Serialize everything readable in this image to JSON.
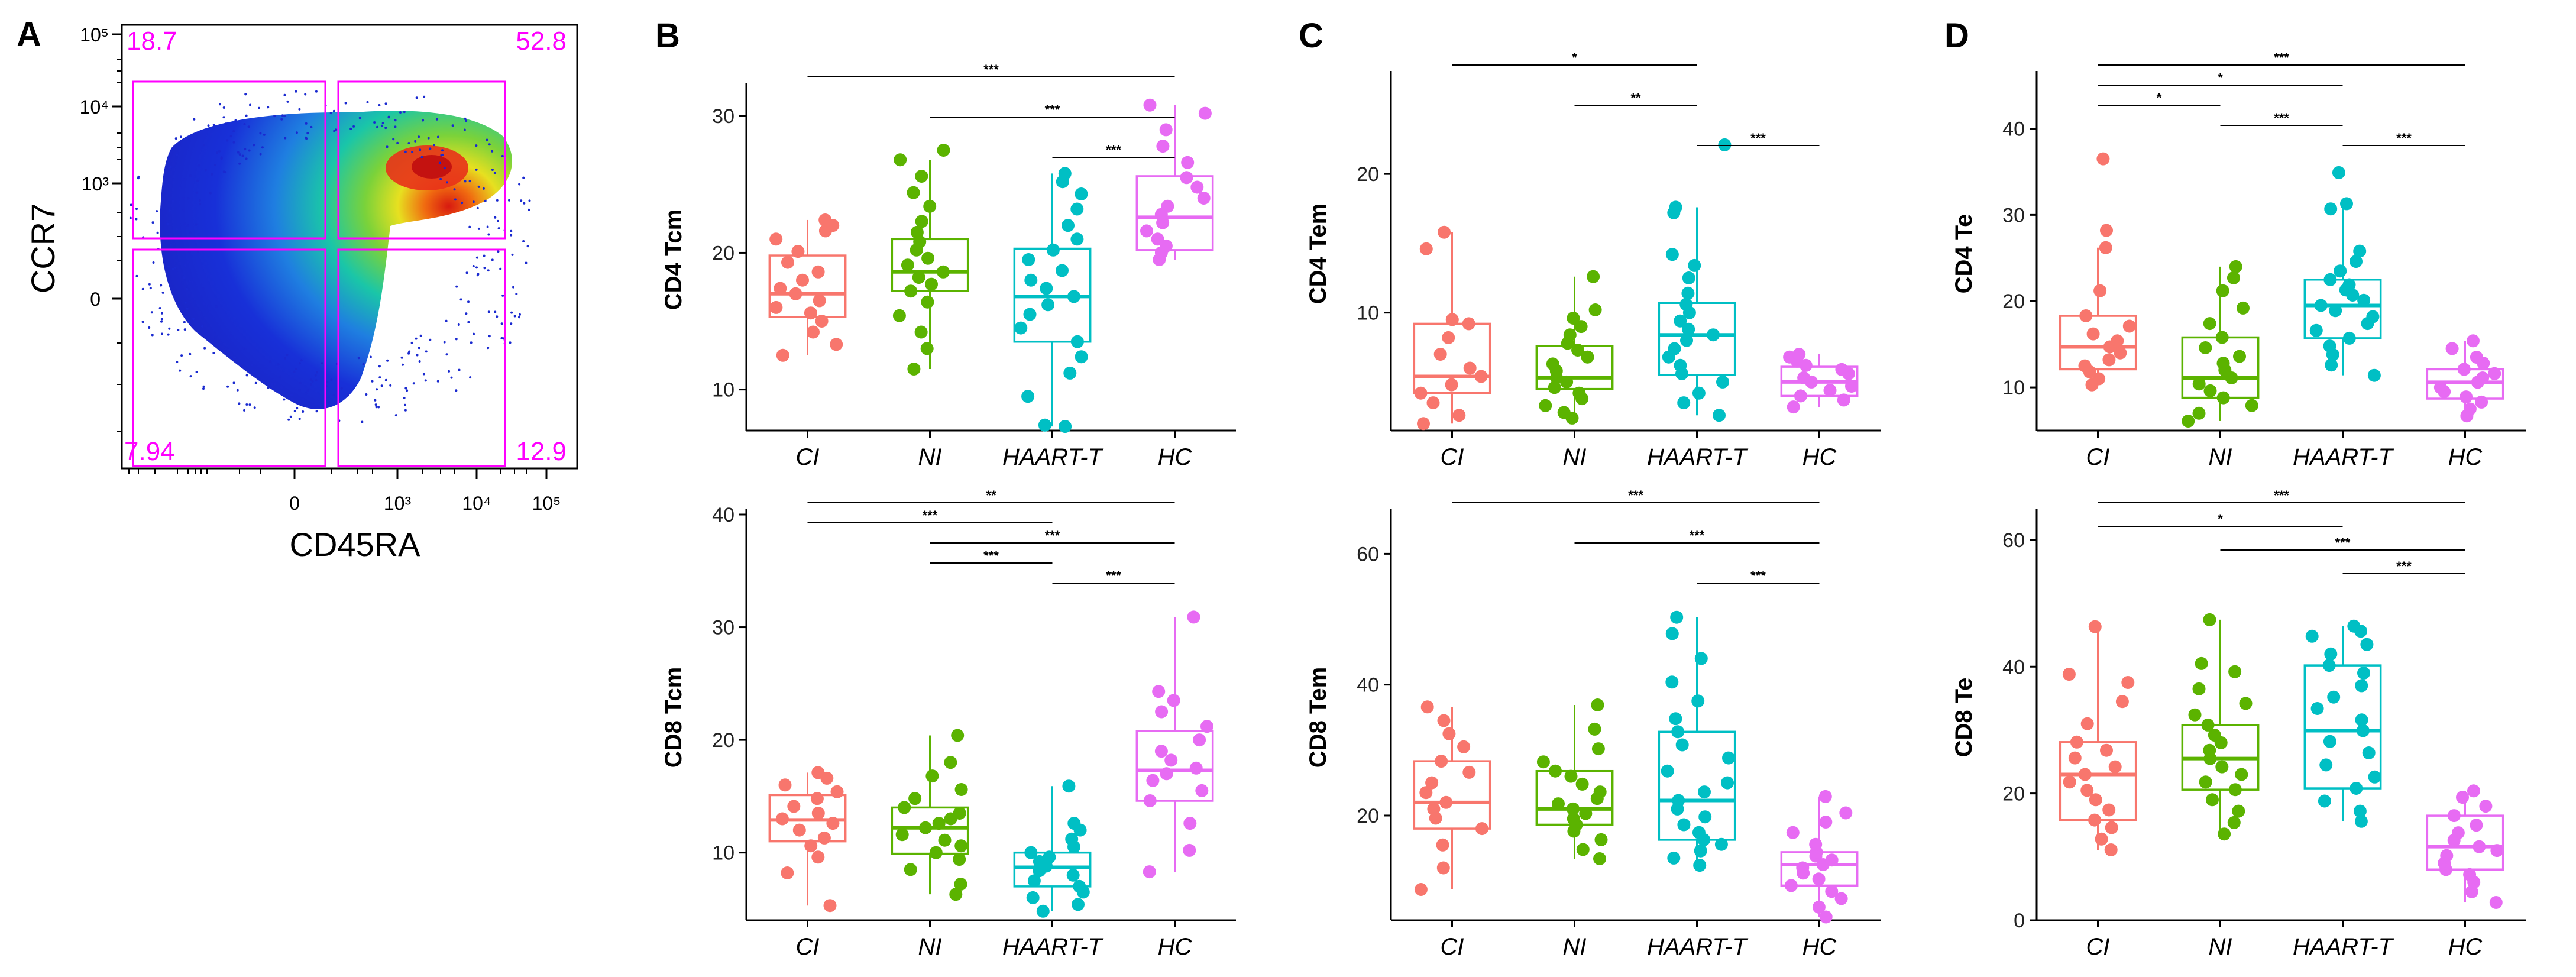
{
  "figure": {
    "panel_letters": [
      "A",
      "B",
      "C",
      "D"
    ],
    "group_colors": {
      "CI": "#F8766D",
      "NI": "#5BB300",
      "HAART-T": "#00BFC4",
      "HC": "#E76BF3"
    },
    "gate_color": "#FF00FF"
  },
  "chart_data": [
    {
      "id": "A",
      "type": "scatter",
      "title": "",
      "xlabel": "CD45RA",
      "ylabel": "CCR7",
      "x_ticks": [
        "0",
        "10³",
        "10⁴",
        "10⁵"
      ],
      "y_ticks": [
        "10⁵",
        "10⁴",
        "10³",
        "0"
      ],
      "quadrants": {
        "upper_left": "18.7",
        "upper_right": "52.8",
        "lower_left": "7.94",
        "lower_right": "12.9"
      }
    },
    {
      "id": "B1",
      "type": "box",
      "ylabel": "CD4 Tcm",
      "categories": [
        "CI",
        "NI",
        "HAART-T",
        "HC"
      ],
      "ylim": [
        7,
        32
      ],
      "yticks": [
        10,
        20,
        30
      ],
      "boxes": [
        {
          "q1": 15.3,
          "median": 17.0,
          "q3": 19.8,
          "lo": 12.5,
          "hi": 22.4
        },
        {
          "q1": 17.2,
          "median": 18.6,
          "q3": 21.0,
          "lo": 11.5,
          "hi": 26.8
        },
        {
          "q1": 13.5,
          "median": 16.8,
          "q3": 20.3,
          "lo": 7.3,
          "hi": 25.8
        },
        {
          "q1": 20.2,
          "median": 22.6,
          "q3": 25.6,
          "lo": 19.5,
          "hi": 30.8
        }
      ],
      "points": [
        [
          12.5,
          13.3,
          14.2,
          15.0,
          15.6,
          16.0,
          16.5,
          17.0,
          17.4,
          18.0,
          18.6,
          19.3,
          20.1,
          21.0,
          21.6,
          22.0,
          22.4
        ],
        [
          11.5,
          13.0,
          14.2,
          15.4,
          16.4,
          17.2,
          17.7,
          18.2,
          18.6,
          19.1,
          19.6,
          20.2,
          20.8,
          21.5,
          22.3,
          23.4,
          24.4,
          25.6,
          26.8,
          27.5
        ],
        [
          7.3,
          7.4,
          9.5,
          11.2,
          12.4,
          13.5,
          14.5,
          15.5,
          16.2,
          16.8,
          17.4,
          18.0,
          18.7,
          19.5,
          20.2,
          21.0,
          22.0,
          23.2,
          24.3,
          25.2,
          25.8
        ],
        [
          19.5,
          20.0,
          20.5,
          21.0,
          21.6,
          22.2,
          22.8,
          23.4,
          24.0,
          24.8,
          25.5,
          26.6,
          27.8,
          29.0,
          30.2,
          30.8
        ]
      ],
      "brackets": [
        {
          "from": 0,
          "to": 3,
          "label": "***"
        },
        {
          "from": 1,
          "to": 3,
          "label": "***"
        },
        {
          "from": 2,
          "to": 3,
          "label": "***"
        }
      ]
    },
    {
      "id": "B2",
      "type": "box",
      "ylabel": "CD8 Tcm",
      "categories": [
        "CI",
        "NI",
        "HAART-T",
        "HC"
      ],
      "ylim": [
        4,
        40
      ],
      "yticks": [
        10,
        20,
        30,
        40
      ],
      "boxes": [
        {
          "q1": 11.0,
          "median": 12.9,
          "q3": 15.1,
          "lo": 5.3,
          "hi": 17.1
        },
        {
          "q1": 9.9,
          "median": 12.2,
          "q3": 14.0,
          "lo": 6.3,
          "hi": 20.4
        },
        {
          "q1": 7.0,
          "median": 8.7,
          "q3": 10.0,
          "lo": 4.8,
          "hi": 15.9
        },
        {
          "q1": 14.6,
          "median": 17.3,
          "q3": 20.8,
          "lo": 8.3,
          "hi": 30.9
        }
      ],
      "points": [
        [
          5.3,
          8.2,
          9.6,
          10.6,
          11.3,
          12.0,
          12.6,
          13.0,
          13.5,
          14.1,
          14.8,
          15.4,
          16.0,
          16.6,
          17.1
        ],
        [
          6.3,
          7.2,
          8.5,
          9.4,
          10.0,
          10.6,
          11.1,
          11.6,
          12.2,
          12.6,
          13.0,
          13.5,
          14.0,
          14.8,
          15.6,
          16.8,
          18.0,
          20.4
        ],
        [
          4.8,
          5.4,
          6.0,
          6.5,
          7.0,
          7.5,
          8.0,
          8.4,
          8.8,
          9.2,
          9.6,
          10.0,
          10.5,
          11.2,
          12.0,
          12.6,
          15.9
        ],
        [
          8.3,
          10.2,
          12.6,
          14.6,
          15.5,
          16.4,
          17.0,
          17.5,
          18.2,
          19.0,
          20.0,
          21.2,
          22.5,
          23.5,
          24.3,
          30.9
        ]
      ],
      "brackets": [
        {
          "from": 0,
          "to": 3,
          "label": "**"
        },
        {
          "from": 0,
          "to": 2,
          "label": "***"
        },
        {
          "from": 1,
          "to": 3,
          "label": "***"
        },
        {
          "from": 1,
          "to": 2,
          "label": "***"
        },
        {
          "from": 2,
          "to": 3,
          "label": "***"
        }
      ]
    },
    {
      "id": "C1",
      "type": "box",
      "ylabel": "CD4 Tem",
      "categories": [
        "CI",
        "NI",
        "HAART-T",
        "HC"
      ],
      "ylim": [
        1.5,
        27
      ],
      "yticks": [
        10,
        20
      ],
      "boxes": [
        {
          "q1": 4.2,
          "median": 5.4,
          "q3": 9.2,
          "lo": 2.0,
          "hi": 15.8
        },
        {
          "q1": 4.5,
          "median": 5.3,
          "q3": 7.6,
          "lo": 2.4,
          "hi": 12.6
        },
        {
          "q1": 5.5,
          "median": 8.4,
          "q3": 10.7,
          "lo": 2.6,
          "hi": 17.6
        },
        {
          "q1": 4.0,
          "median": 5.0,
          "q3": 6.1,
          "lo": 3.2,
          "hi": 7.0
        }
      ],
      "points": [
        [
          2.0,
          2.6,
          3.5,
          4.2,
          4.8,
          5.4,
          6.0,
          7.0,
          8.2,
          9.2,
          9.5,
          14.6,
          15.8
        ],
        [
          2.4,
          2.8,
          3.3,
          3.8,
          4.2,
          4.6,
          5.0,
          5.3,
          5.8,
          6.3,
          6.8,
          7.3,
          7.8,
          8.4,
          9.0,
          9.6,
          10.2,
          12.6
        ],
        [
          2.6,
          3.5,
          4.2,
          5.0,
          5.6,
          6.2,
          6.8,
          7.4,
          8.0,
          8.4,
          8.8,
          9.4,
          10.0,
          10.6,
          11.4,
          12.5,
          13.4,
          14.2,
          17.2,
          17.6,
          22.1
        ],
        [
          3.2,
          3.7,
          4.0,
          4.4,
          4.7,
          5.0,
          5.3,
          5.6,
          5.9,
          6.2,
          6.5,
          6.8,
          7.0
        ]
      ],
      "brackets": [
        {
          "from": 0,
          "to": 2,
          "label": "*"
        },
        {
          "from": 1,
          "to": 2,
          "label": "**"
        },
        {
          "from": 2,
          "to": 3,
          "label": "***"
        }
      ]
    },
    {
      "id": "C2",
      "type": "box",
      "ylabel": "CD8 Tem",
      "categories": [
        "CI",
        "NI",
        "HAART-T",
        "HC"
      ],
      "ylim": [
        4,
        66
      ],
      "yticks": [
        20,
        40,
        60
      ],
      "boxes": [
        {
          "q1": 18.0,
          "median": 22.0,
          "q3": 28.3,
          "lo": 8.7,
          "hi": 36.6
        },
        {
          "q1": 18.6,
          "median": 21.0,
          "q3": 26.8,
          "lo": 13.4,
          "hi": 36.9
        },
        {
          "q1": 16.3,
          "median": 22.3,
          "q3": 32.8,
          "lo": 12.4,
          "hi": 50.3
        },
        {
          "q1": 9.3,
          "median": 12.5,
          "q3": 14.4,
          "lo": 4.5,
          "hi": 22.9
        }
      ],
      "points": [
        [
          8.7,
          12.0,
          15.5,
          18.0,
          19.6,
          21.0,
          22.0,
          23.5,
          25.0,
          26.6,
          28.3,
          30.5,
          32.5,
          34.5,
          36.6
        ],
        [
          13.4,
          14.8,
          16.3,
          17.6,
          18.6,
          19.5,
          20.3,
          21.0,
          21.8,
          22.6,
          23.6,
          24.8,
          26.0,
          26.8,
          28.2,
          30.2,
          33.2,
          36.9
        ],
        [
          12.4,
          13.5,
          14.6,
          15.6,
          16.3,
          17.4,
          18.6,
          19.8,
          21.0,
          22.3,
          23.6,
          25.0,
          26.8,
          28.8,
          30.8,
          32.8,
          34.8,
          37.5,
          40.4,
          44.0,
          47.8,
          50.3
        ],
        [
          4.5,
          6.0,
          7.3,
          8.4,
          9.3,
          10.3,
          11.2,
          12.0,
          12.5,
          13.2,
          13.8,
          14.4,
          15.6,
          17.4,
          19.0,
          20.4,
          22.9
        ]
      ],
      "brackets": [
        {
          "from": 0,
          "to": 3,
          "label": "***"
        },
        {
          "from": 1,
          "to": 3,
          "label": "***"
        },
        {
          "from": 2,
          "to": 3,
          "label": "***"
        }
      ]
    },
    {
      "id": "D1",
      "type": "box",
      "ylabel": "CD4 Te",
      "categories": [
        "CI",
        "NI",
        "HAART-T",
        "HC"
      ],
      "ylim": [
        5,
        46
      ],
      "yticks": [
        10,
        20,
        30,
        40
      ],
      "boxes": [
        {
          "q1": 12.1,
          "median": 14.7,
          "q3": 18.3,
          "lo": 10.3,
          "hi": 26.2
        },
        {
          "q1": 8.8,
          "median": 11.1,
          "q3": 15.8,
          "lo": 6.1,
          "hi": 24.0
        },
        {
          "q1": 15.7,
          "median": 19.5,
          "q3": 22.5,
          "lo": 11.4,
          "hi": 31.3
        },
        {
          "q1": 8.7,
          "median": 10.6,
          "q3": 12.1,
          "lo": 6.7,
          "hi": 15.4
        }
      ],
      "points": [
        [
          10.3,
          11.0,
          11.8,
          12.5,
          13.2,
          14.0,
          14.7,
          15.4,
          16.2,
          17.1,
          18.3,
          21.2,
          26.2,
          28.2,
          36.5
        ],
        [
          6.1,
          7.0,
          7.9,
          8.8,
          9.6,
          10.4,
          11.1,
          12.0,
          12.8,
          13.6,
          14.6,
          15.8,
          17.4,
          19.2,
          21.2,
          22.7,
          24.0
        ],
        [
          11.4,
          12.6,
          13.8,
          14.8,
          15.7,
          16.6,
          17.4,
          18.2,
          18.9,
          19.5,
          20.1,
          20.7,
          21.3,
          21.9,
          22.5,
          23.5,
          24.6,
          25.8,
          30.7,
          31.3,
          34.9
        ],
        [
          6.7,
          7.5,
          8.3,
          8.9,
          9.5,
          10.0,
          10.6,
          11.1,
          11.6,
          12.1,
          12.8,
          13.5,
          14.5,
          15.4
        ]
      ],
      "brackets": [
        {
          "from": 0,
          "to": 3,
          "label": "***"
        },
        {
          "from": 0,
          "to": 2,
          "label": "*"
        },
        {
          "from": 0,
          "to": 1,
          "label": "*"
        },
        {
          "from": 1,
          "to": 2,
          "label": "***"
        },
        {
          "from": 2,
          "to": 3,
          "label": "***"
        }
      ]
    },
    {
      "id": "D2",
      "type": "box",
      "ylabel": "CD8 Te",
      "categories": [
        "CI",
        "NI",
        "HAART-T",
        "HC"
      ],
      "ylim": [
        0,
        64
      ],
      "yticks": [
        0,
        20,
        40,
        60
      ],
      "boxes": [
        {
          "q1": 15.8,
          "median": 23.0,
          "q3": 28.1,
          "lo": 11.1,
          "hi": 46.3
        },
        {
          "q1": 20.6,
          "median": 25.5,
          "q3": 30.8,
          "lo": 13.6,
          "hi": 47.4
        },
        {
          "q1": 20.8,
          "median": 29.9,
          "q3": 40.2,
          "lo": 15.6,
          "hi": 46.4
        },
        {
          "q1": 8.0,
          "median": 11.6,
          "q3": 16.5,
          "lo": 2.8,
          "hi": 20.4
        }
      ],
      "points": [
        [
          11.1,
          12.8,
          14.6,
          15.8,
          17.4,
          19.0,
          20.5,
          21.8,
          23.0,
          24.2,
          25.6,
          26.8,
          28.1,
          31.0,
          34.5,
          37.5,
          38.8,
          46.3
        ],
        [
          13.6,
          15.4,
          17.2,
          19.0,
          20.6,
          21.8,
          23.0,
          24.2,
          25.5,
          26.8,
          28.0,
          29.2,
          30.8,
          32.4,
          34.2,
          36.5,
          39.2,
          40.5,
          47.4
        ],
        [
          15.6,
          17.2,
          18.8,
          20.8,
          22.6,
          24.5,
          26.4,
          28.2,
          29.9,
          31.6,
          33.4,
          35.2,
          37.0,
          39.0,
          40.2,
          42.0,
          43.5,
          44.8,
          45.6,
          46.4
        ],
        [
          2.8,
          4.5,
          6.0,
          7.2,
          8.0,
          9.0,
          10.2,
          11.0,
          11.6,
          12.6,
          13.8,
          15.0,
          16.5,
          18.0,
          19.4,
          20.4
        ]
      ],
      "brackets": [
        {
          "from": 0,
          "to": 3,
          "label": "***"
        },
        {
          "from": 0,
          "to": 2,
          "label": "*"
        },
        {
          "from": 1,
          "to": 3,
          "label": "***"
        },
        {
          "from": 2,
          "to": 3,
          "label": "***"
        }
      ]
    }
  ]
}
